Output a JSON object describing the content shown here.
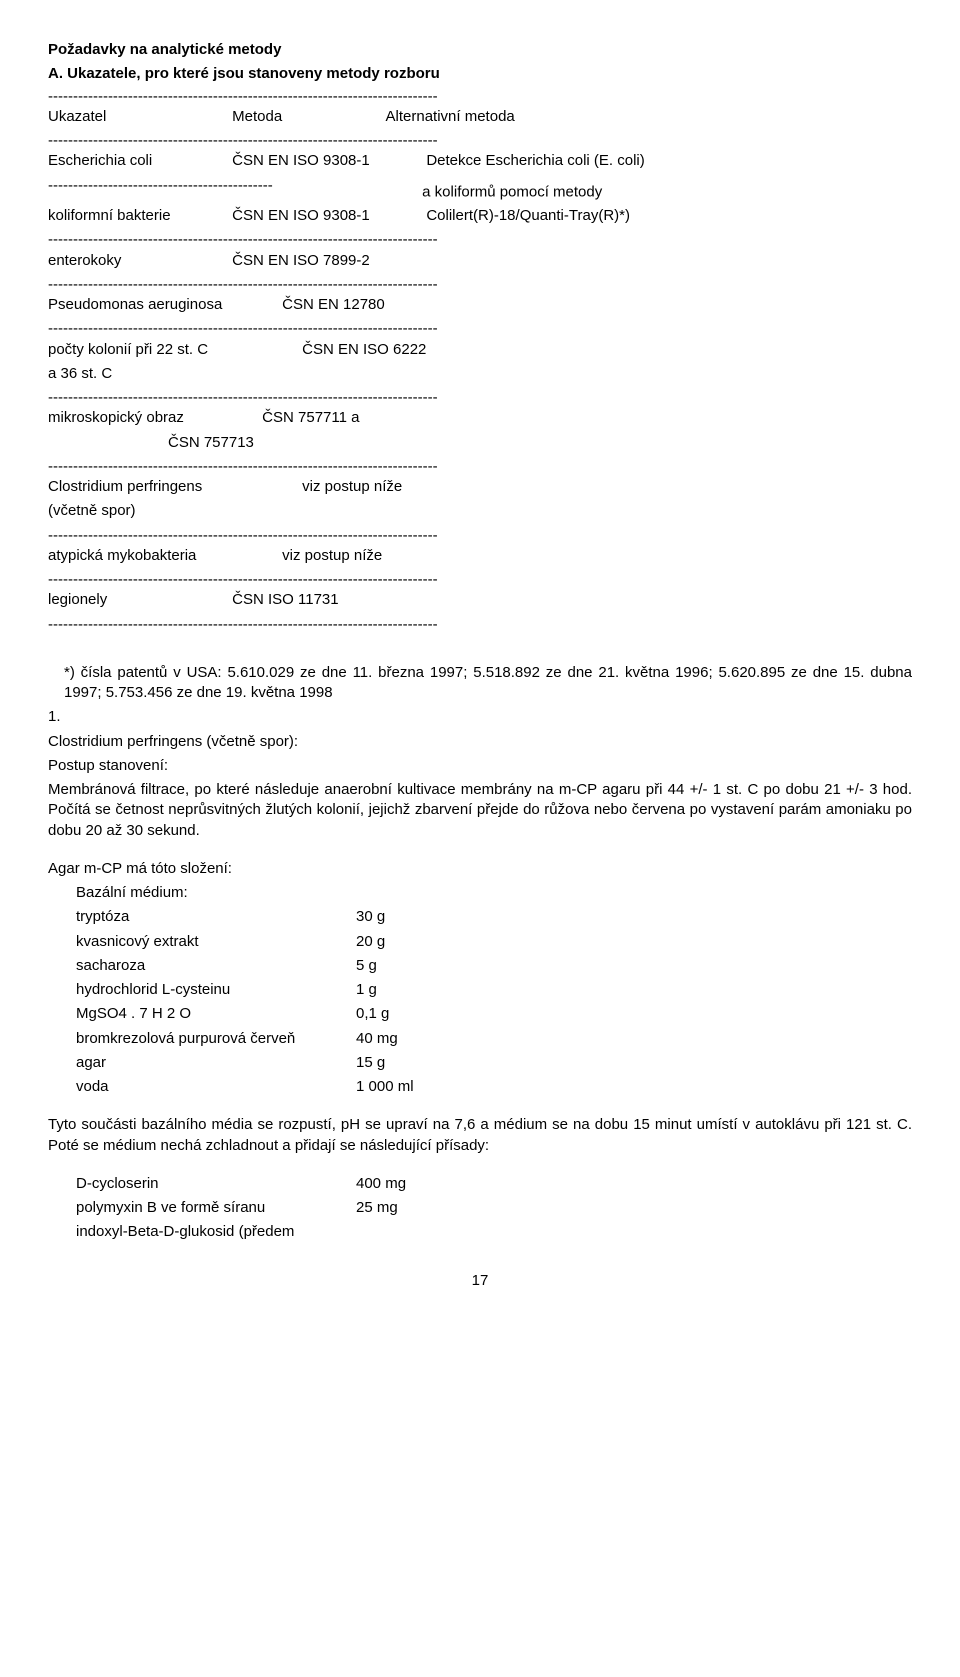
{
  "title": "Požadavky na analytické metody",
  "sectionA": "A. Ukazatele, pro které jsou stanoveny metody rozboru",
  "dash": "------------------------------------------------------------------------------",
  "dashHalf": "---------------------------------------------",
  "header": {
    "c1": "Ukazatel",
    "c2": "Metoda",
    "c3": "Alternativní metoda"
  },
  "r1": {
    "l": "Escherichia coli",
    "m": "ČSN EN ISO 9308-1",
    "r": "Detekce Escherichia coli (E. coli)"
  },
  "r1b": {
    "dash": "---------------------------------------------",
    "r": "a koliformů pomocí metody"
  },
  "r2": {
    "l": "koliformní bakterie",
    "m": "ČSN EN ISO 9308-1",
    "r": "Colilert(R)-18/Quanti-Tray(R)*)"
  },
  "r3": {
    "l": "enterokoky",
    "m": "ČSN EN ISO 7899-2"
  },
  "r4": {
    "l": "Pseudomonas aeruginosa",
    "m": "ČSN EN 12780"
  },
  "r5": {
    "l1": "počty kolonií při 22 st. C",
    "m": "ČSN EN ISO 6222",
    "l2": "a 36 st. C"
  },
  "r6": {
    "l": "mikroskopický obraz",
    "m1": "ČSN 757711 a",
    "m2": "ČSN 757713"
  },
  "r7": {
    "l": "Clostridium perfringens",
    "m": "viz postup níže",
    "l2": "(včetně spor)"
  },
  "r8": {
    "l": "atypická mykobakteria",
    "m": "viz postup níže"
  },
  "r9": {
    "l": "legionely",
    "m": "ČSN ISO 11731"
  },
  "note": "*) čísla patentů v USA: 5.610.029 ze dne 11. března 1997; 5.518.892 ze dne 21. května 1996; 5.620.895 ze dne 15. dubna 1997; 5.753.456 ze dne 19. května 1998",
  "item1": "1.",
  "item1title": "Clostridium perfringens (včetně spor):",
  "postup": "Postup stanovení:",
  "postupBody": "Membránová filtrace, po které následuje anaerobní kultivace membrány na m-CP agaru při 44 +/- 1 st. C po dobu 21 +/- 3 hod. Počítá se četnost neprůsvitných žlutých kolonií, jejichž zbarvení přejde do růžova nebo červena po vystavení parám amoniaku po dobu 20 až 30 sekund.",
  "agarTitle": "Agar m-CP má tóto složení:",
  "agar": {
    "sub": "Bazální médium:",
    "rows": [
      {
        "l": "tryptóza",
        "r": "30 g"
      },
      {
        "l": "kvasnicový extrakt",
        "r": "20 g"
      },
      {
        "l": "sacharoza",
        "r": "5 g"
      },
      {
        "l": "hydrochlorid L-cysteinu",
        "r": "1 g"
      },
      {
        "l": "MgSO4 . 7 H 2 O",
        "r": "0,1 g"
      },
      {
        "l": "bromkrezolová purpurová červeň",
        "r": "40 mg"
      },
      {
        "l": "agar",
        "r": "15 g"
      },
      {
        "l": "voda",
        "r": "1 000 ml"
      }
    ]
  },
  "mixBody": "Tyto součásti bazálního média se rozpustí, pH se upraví na 7,6 a médium se na dobu 15 minut umístí v autoklávu při 121 st. C. Poté se médium nechá zchladnout a přidají se následující přísady:",
  "add": {
    "rows": [
      {
        "l": "D-cycloserin",
        "r": "400 mg"
      },
      {
        "l": "polymyxin B ve formě síranu",
        "r": "25 mg"
      },
      {
        "l": "indoxyl-Beta-D-glukosid (předem",
        "r": ""
      }
    ]
  },
  "pageNum": "17"
}
